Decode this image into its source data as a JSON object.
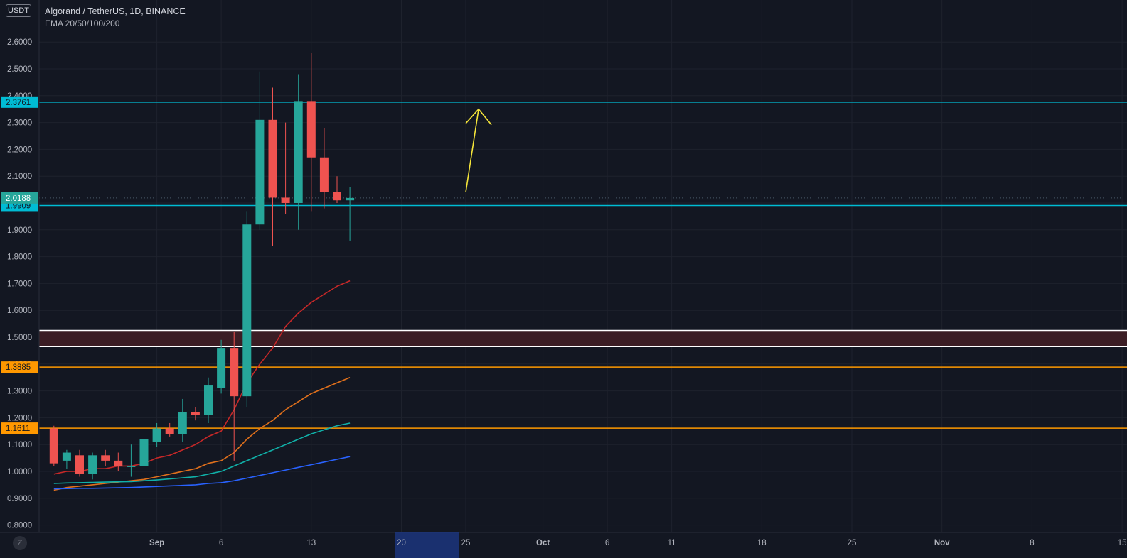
{
  "header": {
    "currency_badge": "USDT",
    "symbol_line": "Algorand / TetherUS, 1D, BINANCE",
    "indicator_line": "EMA 20/50/100/200"
  },
  "axis_button": "Z",
  "colors": {
    "background": "#131722",
    "grid": "#1e222d",
    "up": "#26a69a",
    "down": "#ef5350",
    "cyan_level": "#00bcd4",
    "orange_level": "#ff9800",
    "zone_fill": "#3b1d24",
    "zone_border": "#ffffff",
    "ema20": "#c62828",
    "ema50": "#e0701c",
    "ema100": "#10b0a8",
    "ema200": "#2962ff",
    "arrow": "#f5e53a",
    "highlight": "#1e3a8a"
  },
  "chart_data": {
    "type": "candlestick",
    "symbol": "Algorand / TetherUS",
    "timeframe": "1D",
    "exchange": "BINANCE",
    "ylim": [
      0.77,
      2.7
    ],
    "y_ticks": [
      "0.8000",
      "0.9000",
      "1.0000",
      "1.1000",
      "1.2000",
      "1.3000",
      "1.4000",
      "1.5000",
      "1.6000",
      "1.7000",
      "1.8000",
      "1.9000",
      "2.0000",
      "2.1000",
      "2.2000",
      "2.3000",
      "2.4000",
      "2.5000",
      "2.6000"
    ],
    "x_ticks": [
      {
        "label": "Sep",
        "day": 1
      },
      {
        "label": "6",
        "day": 6
      },
      {
        "label": "13",
        "day": 13
      },
      {
        "label": "20",
        "day": 20
      },
      {
        "label": "25",
        "day": 25
      },
      {
        "label": "Oct",
        "day": 31
      },
      {
        "label": "6",
        "day": 36
      },
      {
        "label": "11",
        "day": 41
      },
      {
        "label": "18",
        "day": 48
      },
      {
        "label": "25",
        "day": 55
      },
      {
        "label": "Nov",
        "day": 62
      },
      {
        "label": "8",
        "day": 69
      },
      {
        "label": "15",
        "day": 76
      }
    ],
    "highlighted_x_range": [
      19.5,
      24.5
    ],
    "candles": [
      {
        "day": -7,
        "o": 1.16,
        "h": 1.17,
        "l": 1.02,
        "c": 1.03
      },
      {
        "day": -6,
        "o": 1.04,
        "h": 1.08,
        "l": 1.01,
        "c": 1.07
      },
      {
        "day": -5,
        "o": 1.06,
        "h": 1.08,
        "l": 0.98,
        "c": 0.99
      },
      {
        "day": -4,
        "o": 0.99,
        "h": 1.07,
        "l": 0.97,
        "c": 1.06
      },
      {
        "day": -3,
        "o": 1.06,
        "h": 1.08,
        "l": 1.02,
        "c": 1.04
      },
      {
        "day": -2,
        "o": 1.04,
        "h": 1.07,
        "l": 1.0,
        "c": 1.02
      },
      {
        "day": -1,
        "o": 1.02,
        "h": 1.1,
        "l": 0.98,
        "c": 1.02
      },
      {
        "day": 0,
        "o": 1.02,
        "h": 1.17,
        "l": 1.01,
        "c": 1.12
      },
      {
        "day": 1,
        "o": 1.11,
        "h": 1.18,
        "l": 1.09,
        "c": 1.16
      },
      {
        "day": 2,
        "o": 1.16,
        "h": 1.18,
        "l": 1.13,
        "c": 1.14
      },
      {
        "day": 3,
        "o": 1.14,
        "h": 1.27,
        "l": 1.11,
        "c": 1.22
      },
      {
        "day": 4,
        "o": 1.22,
        "h": 1.24,
        "l": 1.19,
        "c": 1.21
      },
      {
        "day": 5,
        "o": 1.21,
        "h": 1.35,
        "l": 1.18,
        "c": 1.32
      },
      {
        "day": 6,
        "o": 1.31,
        "h": 1.49,
        "l": 1.29,
        "c": 1.46
      },
      {
        "day": 7,
        "o": 1.46,
        "h": 1.52,
        "l": 1.04,
        "c": 1.28
      },
      {
        "day": 8,
        "o": 1.28,
        "h": 1.97,
        "l": 1.24,
        "c": 1.92
      },
      {
        "day": 9,
        "o": 1.92,
        "h": 2.49,
        "l": 1.9,
        "c": 2.31
      },
      {
        "day": 10,
        "o": 2.31,
        "h": 2.43,
        "l": 1.84,
        "c": 2.02
      },
      {
        "day": 11,
        "o": 2.02,
        "h": 2.3,
        "l": 1.96,
        "c": 2.0
      },
      {
        "day": 12,
        "o": 2.0,
        "h": 2.48,
        "l": 1.9,
        "c": 2.38
      },
      {
        "day": 13,
        "o": 2.38,
        "h": 2.56,
        "l": 1.97,
        "c": 2.17
      },
      {
        "day": 14,
        "o": 2.17,
        "h": 2.28,
        "l": 1.98,
        "c": 2.04
      },
      {
        "day": 15,
        "o": 2.04,
        "h": 2.1,
        "l": 2.0,
        "c": 2.01
      },
      {
        "day": 16,
        "o": 2.01,
        "h": 2.06,
        "l": 1.86,
        "c": 2.0188
      }
    ],
    "ema": [
      {
        "name": "EMA 20",
        "color": "#c62828",
        "values": [
          0.99,
          1.0,
          1.0,
          1.01,
          1.01,
          1.02,
          1.02,
          1.03,
          1.05,
          1.06,
          1.08,
          1.1,
          1.13,
          1.15,
          1.23,
          1.33,
          1.4,
          1.46,
          1.54,
          1.59,
          1.63,
          1.66,
          1.69,
          1.71
        ]
      },
      {
        "name": "EMA 50",
        "color": "#e0701c",
        "values": [
          0.93,
          0.94,
          0.945,
          0.95,
          0.955,
          0.96,
          0.965,
          0.97,
          0.98,
          0.99,
          1.0,
          1.01,
          1.03,
          1.04,
          1.07,
          1.12,
          1.16,
          1.19,
          1.23,
          1.26,
          1.29,
          1.31,
          1.33,
          1.35
        ]
      },
      {
        "name": "EMA 100",
        "color": "#10b0a8",
        "values": [
          0.955,
          0.957,
          0.958,
          0.959,
          0.96,
          0.961,
          0.962,
          0.965,
          0.968,
          0.972,
          0.976,
          0.98,
          0.99,
          1.0,
          1.02,
          1.04,
          1.06,
          1.08,
          1.1,
          1.12,
          1.14,
          1.155,
          1.17,
          1.18
        ]
      },
      {
        "name": "EMA 200",
        "color": "#2962ff",
        "values": [
          0.935,
          0.936,
          0.937,
          0.937,
          0.938,
          0.939,
          0.94,
          0.942,
          0.944,
          0.946,
          0.948,
          0.95,
          0.955,
          0.958,
          0.965,
          0.975,
          0.985,
          0.995,
          1.005,
          1.015,
          1.025,
          1.035,
          1.045,
          1.055
        ]
      }
    ],
    "horizontal_levels": [
      {
        "value": 2.3761,
        "label": "2.3761",
        "color": "#00bcd4"
      },
      {
        "value": 1.9909,
        "label": "1.9909",
        "color": "#00bcd4"
      },
      {
        "value": 1.3885,
        "label": "1.3885",
        "color": "#ff9800"
      },
      {
        "value": 1.1611,
        "label": "1.1611",
        "color": "#ff9800"
      }
    ],
    "zone": {
      "top": 1.525,
      "bottom": 1.465
    },
    "last_price": {
      "value": 2.0188,
      "label": "2.0188"
    },
    "arrow": {
      "from": {
        "day": 25,
        "price": 2.04
      },
      "to": {
        "day": 26,
        "price": 2.35
      }
    }
  }
}
